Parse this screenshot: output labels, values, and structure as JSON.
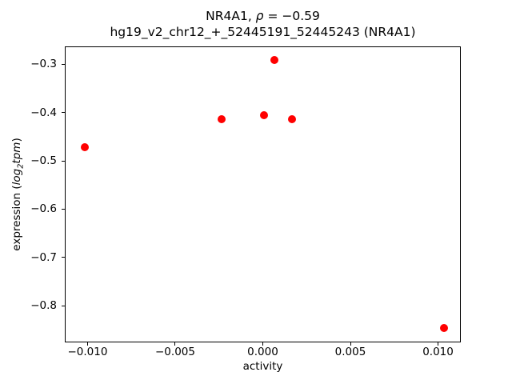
{
  "chart_data": {
    "type": "scatter",
    "title": "NR4A1, ρ = −0.59",
    "title_parts": {
      "gene": "NR4A1, ",
      "rho": "ρ",
      "value": " = −0.59"
    },
    "subtitle": "hg19_v2_chr12_+_52445191_52445243 (NR4A1)",
    "xlabel": "activity",
    "ylabel": "expression (log₂tpm)",
    "ylabel_parts": {
      "prefix": "expression (",
      "log": "log",
      "sub": "2",
      "var": "tpm",
      "suffix": ")"
    },
    "xlim": [
      -0.0113,
      0.0113
    ],
    "ylim": [
      -0.876,
      -0.263
    ],
    "x_ticks": [
      -0.01,
      -0.005,
      0.0,
      0.005,
      0.01
    ],
    "x_tick_labels": [
      "−0.010",
      "−0.005",
      "0.000",
      "0.005",
      "0.010"
    ],
    "y_ticks": [
      -0.3,
      -0.4,
      -0.5,
      -0.6,
      -0.7,
      -0.8
    ],
    "y_tick_labels": [
      "−0.3",
      "−0.4",
      "−0.5",
      "−0.6",
      "−0.7",
      "−0.8"
    ],
    "points": [
      {
        "x": -0.0102,
        "y": -0.47
      },
      {
        "x": -0.0024,
        "y": -0.412
      },
      {
        "x": 0.0,
        "y": -0.404
      },
      {
        "x": 0.0006,
        "y": -0.29
      },
      {
        "x": 0.0016,
        "y": -0.412
      },
      {
        "x": 0.0103,
        "y": -0.845
      }
    ],
    "marker_color": "#ff0000",
    "text_color": "#000000",
    "spine_color": "#000000",
    "background": "#ffffff",
    "grid": false,
    "legend": null
  }
}
